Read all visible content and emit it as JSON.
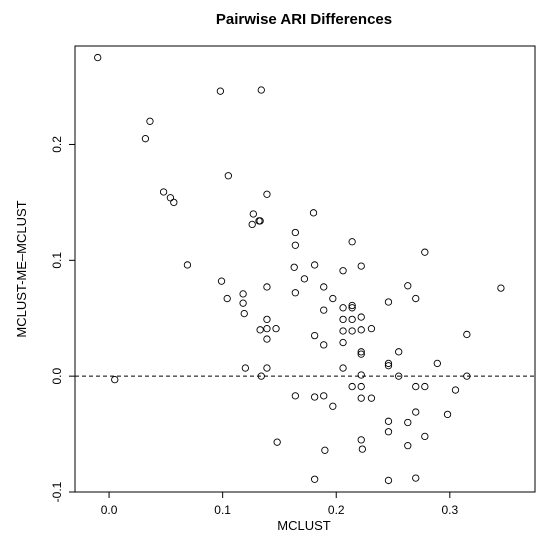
{
  "chart_data": {
    "type": "scatter",
    "title": "Pairwise ARI Differences",
    "xlabel": "MCLUST",
    "ylabel": "MCLUST-ME–MCLUST",
    "xlim": [
      -0.03,
      0.375
    ],
    "ylim": [
      -0.1,
      0.285
    ],
    "xticks": [
      0.0,
      0.1,
      0.2,
      0.3
    ],
    "xtick_labels": [
      "0.0",
      "0.1",
      "0.2",
      "0.3"
    ],
    "yticks": [
      -0.1,
      0.0,
      0.1,
      0.2
    ],
    "ytick_labels": [
      "-0.1",
      "0.0",
      "0.1",
      "0.2"
    ],
    "reference_line": {
      "y": 0.0,
      "style": "dashed"
    },
    "grid": false,
    "marker": "open-circle",
    "points": [
      [
        -0.01,
        0.275
      ],
      [
        0.005,
        -0.003
      ],
      [
        0.032,
        0.205
      ],
      [
        0.036,
        0.22
      ],
      [
        0.048,
        0.159
      ],
      [
        0.054,
        0.154
      ],
      [
        0.057,
        0.15
      ],
      [
        0.069,
        0.096
      ],
      [
        0.098,
        0.246
      ],
      [
        0.099,
        0.082
      ],
      [
        0.104,
        0.067
      ],
      [
        0.105,
        0.173
      ],
      [
        0.118,
        0.071
      ],
      [
        0.118,
        0.063
      ],
      [
        0.119,
        0.054
      ],
      [
        0.12,
        0.007
      ],
      [
        0.126,
        0.131
      ],
      [
        0.127,
        0.14
      ],
      [
        0.132,
        0.134
      ],
      [
        0.133,
        0.134
      ],
      [
        0.133,
        0.04
      ],
      [
        0.134,
        0.247
      ],
      [
        0.134,
        0.0
      ],
      [
        0.139,
        0.157
      ],
      [
        0.139,
        0.077
      ],
      [
        0.139,
        0.049
      ],
      [
        0.139,
        0.041
      ],
      [
        0.139,
        0.032
      ],
      [
        0.139,
        0.007
      ],
      [
        0.147,
        0.041
      ],
      [
        0.148,
        -0.057
      ],
      [
        0.163,
        0.094
      ],
      [
        0.164,
        0.124
      ],
      [
        0.164,
        0.113
      ],
      [
        0.164,
        0.072
      ],
      [
        0.164,
        -0.017
      ],
      [
        0.172,
        0.084
      ],
      [
        0.18,
        0.141
      ],
      [
        0.181,
        0.096
      ],
      [
        0.181,
        0.035
      ],
      [
        0.181,
        -0.089
      ],
      [
        0.181,
        -0.018
      ],
      [
        0.189,
        0.077
      ],
      [
        0.189,
        0.057
      ],
      [
        0.189,
        0.027
      ],
      [
        0.189,
        -0.017
      ],
      [
        0.19,
        -0.064
      ],
      [
        0.197,
        0.067
      ],
      [
        0.197,
        -0.026
      ],
      [
        0.206,
        0.091
      ],
      [
        0.206,
        0.059
      ],
      [
        0.206,
        0.049
      ],
      [
        0.206,
        0.039
      ],
      [
        0.206,
        0.029
      ],
      [
        0.206,
        0.007
      ],
      [
        0.214,
        0.116
      ],
      [
        0.214,
        0.061
      ],
      [
        0.214,
        0.059
      ],
      [
        0.214,
        0.049
      ],
      [
        0.214,
        0.039
      ],
      [
        0.214,
        -0.009
      ],
      [
        0.222,
        0.095
      ],
      [
        0.222,
        0.051
      ],
      [
        0.222,
        0.04
      ],
      [
        0.222,
        0.021
      ],
      [
        0.222,
        0.019
      ],
      [
        0.222,
        0.001
      ],
      [
        0.222,
        -0.009
      ],
      [
        0.222,
        -0.019
      ],
      [
        0.222,
        -0.055
      ],
      [
        0.223,
        -0.063
      ],
      [
        0.231,
        0.041
      ],
      [
        0.231,
        -0.019
      ],
      [
        0.246,
        0.064
      ],
      [
        0.246,
        0.011
      ],
      [
        0.246,
        0.009
      ],
      [
        0.246,
        -0.039
      ],
      [
        0.246,
        -0.048
      ],
      [
        0.246,
        -0.09
      ],
      [
        0.255,
        0.021
      ],
      [
        0.255,
        0.0
      ],
      [
        0.263,
        0.078
      ],
      [
        0.263,
        -0.04
      ],
      [
        0.263,
        -0.06
      ],
      [
        0.27,
        0.067
      ],
      [
        0.27,
        -0.009
      ],
      [
        0.27,
        -0.031
      ],
      [
        0.27,
        -0.088
      ],
      [
        0.278,
        0.107
      ],
      [
        0.278,
        -0.009
      ],
      [
        0.278,
        -0.052
      ],
      [
        0.289,
        0.011
      ],
      [
        0.298,
        -0.033
      ],
      [
        0.305,
        -0.012
      ],
      [
        0.315,
        0.036
      ],
      [
        0.315,
        0.0
      ],
      [
        0.345,
        0.076
      ]
    ]
  }
}
